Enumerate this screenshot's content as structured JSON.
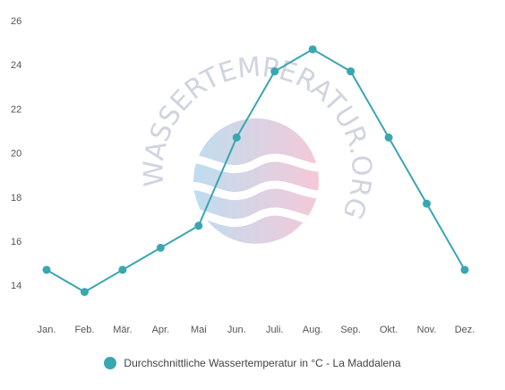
{
  "chart_data": {
    "type": "line",
    "categories": [
      "Jan.",
      "Feb.",
      "Mär.",
      "Apr.",
      "Mai",
      "Jun.",
      "Juli.",
      "Aug.",
      "Sep.",
      "Okt.",
      "Nov.",
      "Dez."
    ],
    "series": [
      {
        "name": "Durchschnittliche Wassertemperatur in °C - La Maddalena",
        "values": [
          14.7,
          13.7,
          14.7,
          15.7,
          16.7,
          20.7,
          23.7,
          24.7,
          23.7,
          20.7,
          17.7,
          14.7
        ]
      }
    ],
    "yticks": [
      14,
      16,
      18,
      20,
      22,
      24,
      26
    ],
    "ylim": [
      13,
      26
    ],
    "title": "",
    "xlabel": "",
    "ylabel": "",
    "grid": false,
    "legend_position": "bottom"
  },
  "watermark": {
    "text": "WASSERTEMPERATUR.ORG"
  },
  "colors": {
    "line": "#3aa6b0",
    "tick_text": "#555555"
  }
}
